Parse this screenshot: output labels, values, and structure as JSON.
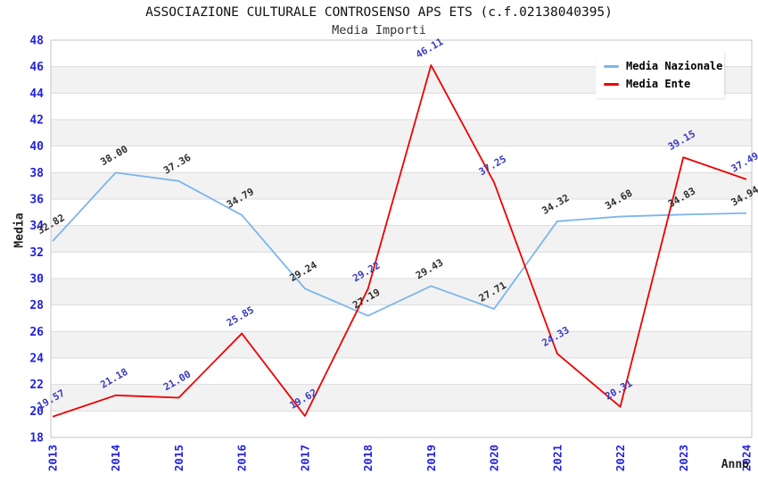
{
  "header": {
    "title": "ASSOCIAZIONE CULTURALE CONTROSENSO APS ETS (c.f.02138040395)",
    "subtitle": "Media Importi"
  },
  "axes": {
    "y_title": "Media",
    "x_title": "Anno",
    "tick_label_color": "#2222DD"
  },
  "chart_data": {
    "type": "line",
    "title": "ASSOCIAZIONE CULTURALE CONTROSENSO APS ETS (c.f.02138040395)",
    "subtitle": "Media Importi",
    "categories": [
      "2013",
      "2014",
      "2015",
      "2016",
      "2017",
      "2018",
      "2019",
      "2020",
      "2021",
      "2022",
      "2023",
      "2024"
    ],
    "series": [
      {
        "name": "Media Nazionale",
        "color": "#7CB5EC",
        "label_color": "#2E2E2E",
        "values": [
          32.82,
          38.0,
          37.36,
          34.79,
          29.24,
          27.19,
          29.43,
          27.71,
          34.32,
          34.68,
          34.83,
          34.94
        ]
      },
      {
        "name": "Media Ente",
        "color": "#EE0000",
        "label_color": "#3B3BC0",
        "values": [
          19.57,
          21.18,
          21.0,
          25.85,
          19.62,
          29.22,
          46.11,
          37.25,
          24.33,
          20.31,
          39.15,
          37.49
        ]
      }
    ],
    "xlabel": "Anno",
    "ylabel": "Media",
    "ylim": [
      18,
      48
    ],
    "ytick_step": 2,
    "grid": true,
    "band_color": "#F2F2F2",
    "grid_color": "#DCDCDC",
    "border_color": "#C6C6C6",
    "legend_position": "top-right",
    "value_label_decimals": 2
  }
}
